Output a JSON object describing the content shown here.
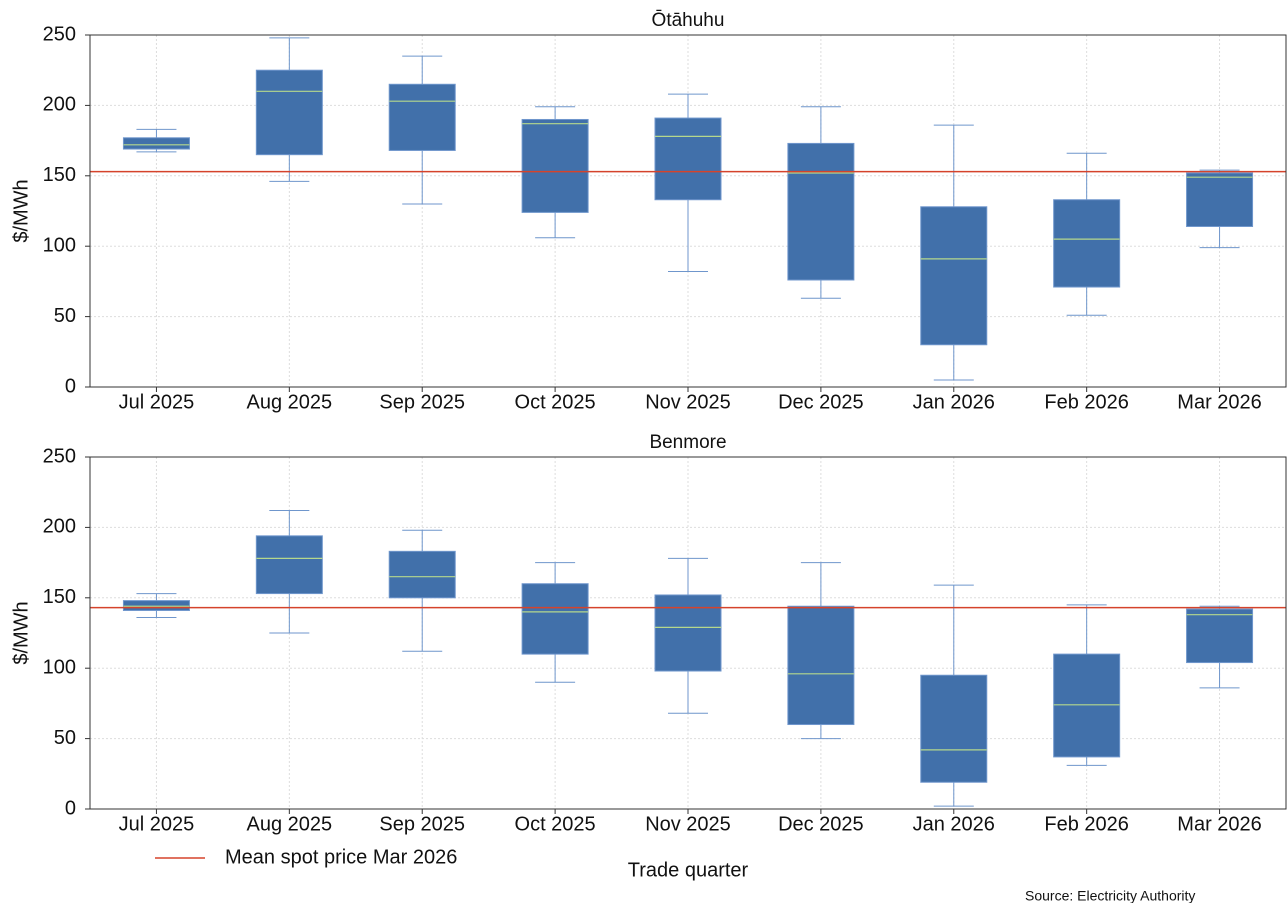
{
  "chart_data": [
    {
      "type": "box",
      "title": "Ōtāhuhu",
      "ylabel": "$/MWh",
      "categories": [
        "Jul 2025",
        "Aug 2025",
        "Sep 2025",
        "Oct 2025",
        "Nov 2025",
        "Dec 2025",
        "Jan 2026",
        "Feb 2026",
        "Mar 2026"
      ],
      "boxes": [
        {
          "low": 167,
          "q1": 169,
          "median": 172,
          "q3": 177,
          "high": 183
        },
        {
          "low": 146,
          "q1": 165,
          "median": 210,
          "q3": 225,
          "high": 248
        },
        {
          "low": 130,
          "q1": 168,
          "median": 203,
          "q3": 215,
          "high": 235
        },
        {
          "low": 106,
          "q1": 124,
          "median": 187,
          "q3": 190,
          "high": 199
        },
        {
          "low": 82,
          "q1": 133,
          "median": 178,
          "q3": 191,
          "high": 208
        },
        {
          "low": 63,
          "q1": 76,
          "median": 152,
          "q3": 173,
          "high": 199
        },
        {
          "low": 5,
          "q1": 30,
          "median": 91,
          "q3": 128,
          "high": 186
        },
        {
          "low": 51,
          "q1": 71,
          "median": 105,
          "q3": 133,
          "high": 166
        },
        {
          "low": 99,
          "q1": 114,
          "median": 149,
          "q3": 152,
          "high": 154
        }
      ],
      "color": "#4170aa",
      "median_color": "#b5d88c",
      "whisker_color": "#6f96cc",
      "reference_line": {
        "value": 153,
        "color": "#d5432b"
      },
      "ylim": [
        0,
        250
      ],
      "yticks": [
        0,
        50,
        100,
        150,
        200,
        250
      ],
      "grid": true
    },
    {
      "type": "box",
      "title": "Benmore",
      "ylabel": "$/MWh",
      "xlabel": "Trade quarter",
      "categories": [
        "Jul 2025",
        "Aug 2025",
        "Sep 2025",
        "Oct 2025",
        "Nov 2025",
        "Dec 2025",
        "Jan 2026",
        "Feb 2026",
        "Mar 2026"
      ],
      "boxes": [
        {
          "low": 136,
          "q1": 141,
          "median": 144,
          "q3": 148,
          "high": 153
        },
        {
          "low": 125,
          "q1": 153,
          "median": 178,
          "q3": 194,
          "high": 212
        },
        {
          "low": 112,
          "q1": 150,
          "median": 165,
          "q3": 183,
          "high": 198
        },
        {
          "low": 90,
          "q1": 110,
          "median": 140,
          "q3": 160,
          "high": 175
        },
        {
          "low": 68,
          "q1": 98,
          "median": 129,
          "q3": 152,
          "high": 178
        },
        {
          "low": 50,
          "q1": 60,
          "median": 96,
          "q3": 144,
          "high": 175
        },
        {
          "low": 2,
          "q1": 19,
          "median": 42,
          "q3": 95,
          "high": 159
        },
        {
          "low": 31,
          "q1": 37,
          "median": 74,
          "q3": 110,
          "high": 145
        },
        {
          "low": 86,
          "q1": 104,
          "median": 138,
          "q3": 142,
          "high": 144
        }
      ],
      "color": "#4170aa",
      "median_color": "#b5d88c",
      "whisker_color": "#6f96cc",
      "reference_line": {
        "value": 143,
        "color": "#d5432b"
      },
      "ylim": [
        0,
        250
      ],
      "yticks": [
        0,
        50,
        100,
        150,
        200,
        250
      ],
      "grid": true
    }
  ],
  "legend": "Mean spot price Mar 2026",
  "source": "Source: Electricity Authority"
}
